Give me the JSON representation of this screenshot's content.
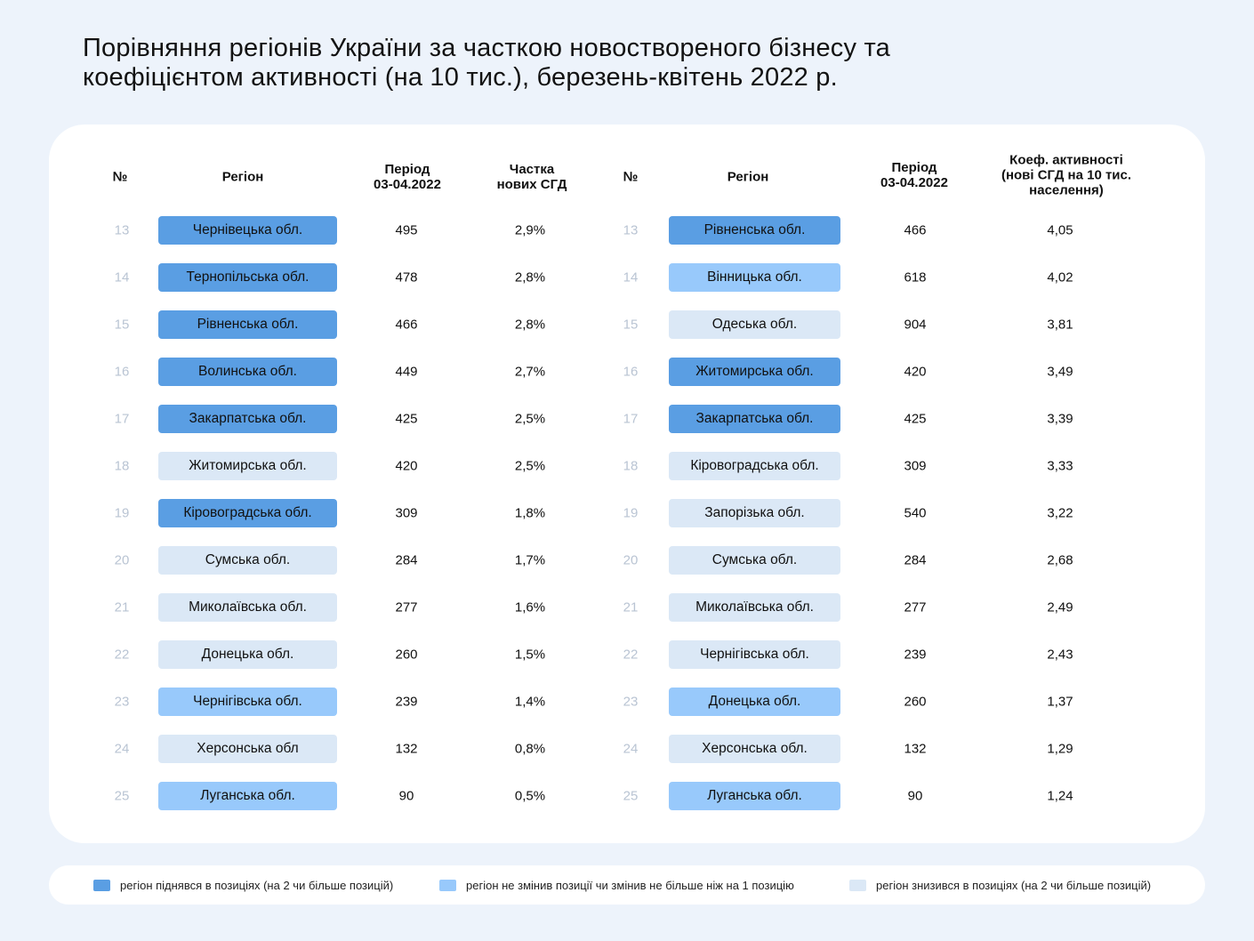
{
  "title_lines": [
    "Порівняння регіонів України за часткою новоствореного бізнесу та",
    "коефіцієнтом активності (на 10 тис.), березень-квітень 2022 р."
  ],
  "colors": {
    "up": "#5a9ee3",
    "same": "#98c9fb",
    "down": "#dbe8f6"
  },
  "headers": {
    "left": {
      "num": "№",
      "region": "Регіон",
      "period": [
        "Період",
        "03-04.2022"
      ],
      "metric": [
        "Частка",
        "нових СГД"
      ]
    },
    "right": {
      "num": "№",
      "region": "Регіон",
      "period": [
        "Період",
        "03-04.2022"
      ],
      "metric": [
        "Коеф. активності",
        "(нові СГД на 10 тис.",
        "населення)"
      ]
    }
  },
  "chart_data": {
    "type": "table",
    "title": "Порівняння регіонів України за часткою новоствореного бізнесу та коефіцієнтом активності (на 10 тис.), березень-квітень 2022 р.",
    "left": [
      {
        "rank": "13",
        "region": "Чернівецька обл.",
        "period": "495",
        "metric": "2,9%",
        "status": "up"
      },
      {
        "rank": "14",
        "region": "Тернопільська обл.",
        "period": "478",
        "metric": "2,8%",
        "status": "up"
      },
      {
        "rank": "15",
        "region": "Рівненська обл.",
        "period": "466",
        "metric": "2,8%",
        "status": "up"
      },
      {
        "rank": "16",
        "region": "Волинська обл.",
        "period": "449",
        "metric": "2,7%",
        "status": "up"
      },
      {
        "rank": "17",
        "region": "Закарпатська обл.",
        "period": "425",
        "metric": "2,5%",
        "status": "up"
      },
      {
        "rank": "18",
        "region": "Житомирська обл.",
        "period": "420",
        "metric": "2,5%",
        "status": "down"
      },
      {
        "rank": "19",
        "region": "Кіровоградська обл.",
        "period": "309",
        "metric": "1,8%",
        "status": "up"
      },
      {
        "rank": "20",
        "region": "Сумська обл.",
        "period": "284",
        "metric": "1,7%",
        "status": "down"
      },
      {
        "rank": "21",
        "region": "Миколаївська обл.",
        "period": "277",
        "metric": "1,6%",
        "status": "down"
      },
      {
        "rank": "22",
        "region": "Донецька обл.",
        "period": "260",
        "metric": "1,5%",
        "status": "down"
      },
      {
        "rank": "23",
        "region": "Чернігівська обл.",
        "period": "239",
        "metric": "1,4%",
        "status": "same"
      },
      {
        "rank": "24",
        "region": "Херсонська обл",
        "period": "132",
        "metric": "0,8%",
        "status": "down"
      },
      {
        "rank": "25",
        "region": "Луганська обл.",
        "period": "90",
        "metric": "0,5%",
        "status": "same"
      }
    ],
    "right": [
      {
        "rank": "13",
        "region": "Рівненська обл.",
        "period": "466",
        "metric": "4,05",
        "status": "up"
      },
      {
        "rank": "14",
        "region": "Вінницька обл.",
        "period": "618",
        "metric": "4,02",
        "status": "same"
      },
      {
        "rank": "15",
        "region": "Одеська обл.",
        "period": "904",
        "metric": "3,81",
        "status": "down"
      },
      {
        "rank": "16",
        "region": "Житомирська обл.",
        "period": "420",
        "metric": "3,49",
        "status": "up"
      },
      {
        "rank": "17",
        "region": "Закарпатська обл.",
        "period": "425",
        "metric": "3,39",
        "status": "up"
      },
      {
        "rank": "18",
        "region": "Кіровоградська обл.",
        "period": "309",
        "metric": "3,33",
        "status": "down"
      },
      {
        "rank": "19",
        "region": "Запорізька обл.",
        "period": "540",
        "metric": "3,22",
        "status": "down"
      },
      {
        "rank": "20",
        "region": "Сумська обл.",
        "period": "284",
        "metric": "2,68",
        "status": "down"
      },
      {
        "rank": "21",
        "region": "Миколаївська обл.",
        "period": "277",
        "metric": "2,49",
        "status": "down"
      },
      {
        "rank": "22",
        "region": "Чернігівська обл.",
        "period": "239",
        "metric": "2,43",
        "status": "down"
      },
      {
        "rank": "23",
        "region": "Донецька обл.",
        "period": "260",
        "metric": "1,37",
        "status": "same"
      },
      {
        "rank": "24",
        "region": "Херсонська обл.",
        "period": "132",
        "metric": "1,29",
        "status": "down"
      },
      {
        "rank": "25",
        "region": "Луганська обл.",
        "period": "90",
        "metric": "1,24",
        "status": "same"
      }
    ]
  },
  "legend": [
    {
      "status": "up",
      "label": "регіон піднявся в позиціях (на 2 чи більше позицій)"
    },
    {
      "status": "same",
      "label": "регіон не змінив позиції чи змінив не більше ніж на 1 позицію"
    },
    {
      "status": "down",
      "label": "регіон знизився в позиціях (на 2 чи більше позицій)"
    }
  ]
}
